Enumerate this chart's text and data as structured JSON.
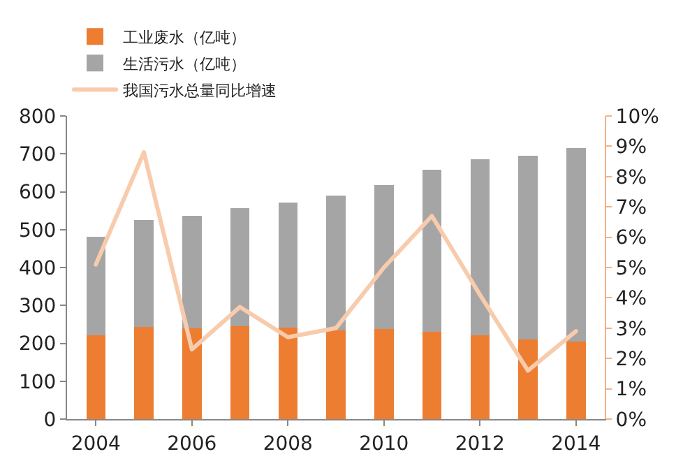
{
  "chart_data": {
    "type": "bar",
    "stacked": true,
    "x": [
      2004,
      2005,
      2006,
      2007,
      2008,
      2009,
      2010,
      2011,
      2012,
      2013,
      2014
    ],
    "xlim": [
      2003.4,
      2014.6
    ],
    "xticks": [
      2004,
      2006,
      2008,
      2010,
      2012,
      2014
    ],
    "ylim": [
      0,
      800
    ],
    "yticks": [
      0,
      100,
      200,
      300,
      400,
      500,
      600,
      700,
      800
    ],
    "y2lim": [
      0,
      10
    ],
    "y2ticks": [
      {
        "value": 0,
        "label": "0%"
      },
      {
        "value": 1,
        "label": "1%"
      },
      {
        "value": 2,
        "label": "2%"
      },
      {
        "value": 3,
        "label": "3%"
      },
      {
        "value": 4,
        "label": "4%"
      },
      {
        "value": 5,
        "label": "5%"
      },
      {
        "value": 6,
        "label": "6%"
      },
      {
        "value": 7,
        "label": "7%"
      },
      {
        "value": 8,
        "label": "8%"
      },
      {
        "value": 9,
        "label": "9%"
      },
      {
        "value": 10,
        "label": "10%"
      }
    ],
    "grid": false,
    "legend": "top",
    "series": [
      {
        "name": "工业废水（亿吨）",
        "color": "#ed7d31",
        "values": [
          221,
          243,
          240,
          246,
          242,
          234,
          237,
          231,
          221,
          210,
          205
        ]
      },
      {
        "name": "生活污水（亿吨）",
        "color": "#a5a5a5",
        "values": [
          261,
          282,
          297,
          311,
          330,
          355,
          380,
          428,
          464,
          485,
          511
        ]
      },
      {
        "name": "我国污水总量同比增速",
        "type": "line",
        "axis": "y2",
        "color": "#f8cbad",
        "values": [
          5.1,
          8.8,
          2.3,
          3.7,
          2.7,
          3.0,
          5.0,
          6.7,
          4.1,
          1.6,
          2.9
        ]
      }
    ]
  }
}
